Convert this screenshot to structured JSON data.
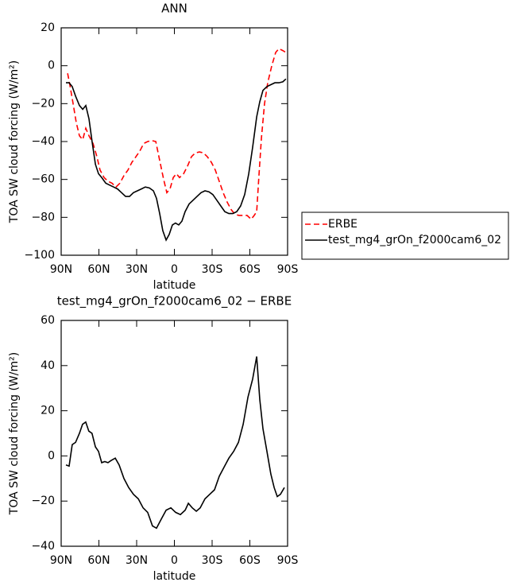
{
  "chart_data": [
    {
      "type": "line",
      "title": "ANN",
      "xlabel": "latitude",
      "ylabel": "TOA SW cloud forcing (W/m²)",
      "xlim": [
        90,
        -90
      ],
      "xticks": [
        {
          "value": 90,
          "label": "90N"
        },
        {
          "value": 60,
          "label": "60N"
        },
        {
          "value": 30,
          "label": "30N"
        },
        0,
        {
          "value": -30,
          "label": "30S"
        },
        {
          "value": -60,
          "label": "60S"
        },
        {
          "value": -90,
          "label": "90S"
        }
      ],
      "ylim": [
        -100,
        20
      ],
      "yticks": [
        {
          "value": -100,
          "label": "−100"
        },
        {
          "value": -80,
          "label": "−80"
        },
        {
          "value": -60,
          "label": "−60"
        },
        {
          "value": -40,
          "label": "−40"
        },
        {
          "value": -20,
          "label": "−20"
        },
        0,
        20
      ],
      "legend": "right",
      "series": [
        {
          "name": "ERBE",
          "color": "#ff0000",
          "dash": true,
          "x": [
            84.9,
            83.1,
            80.5,
            78.0,
            75.5,
            72.9,
            70.4,
            67.9,
            64.7,
            61.6,
            59.1,
            55.9,
            52.7,
            49.6,
            46.4,
            43.3,
            40.1,
            36.9,
            33.8,
            30.6,
            27.5,
            24.3,
            21.2,
            18.0,
            14.8,
            11.7,
            8.5,
            6.0,
            3.5,
            0.9,
            -1.6,
            -4.1,
            -7.3,
            -10.4,
            -13.6,
            -16.7,
            -19.9,
            -23.1,
            -26.2,
            -29.4,
            -32.5,
            -35.7,
            -38.8,
            -42.0,
            -45.2,
            -48.3,
            -51.5,
            -54.6,
            -57.8,
            -61.0,
            -63.5,
            -65.4,
            -67.3,
            -69.2,
            -71.7,
            -74.2,
            -77.4,
            -80.5,
            -83.1,
            -86.2,
            -88.7
          ],
          "values": [
            -4,
            -10,
            -20,
            -30,
            -37,
            -39,
            -33,
            -37,
            -41,
            -48,
            -55,
            -59,
            -61,
            -62,
            -64,
            -62,
            -58,
            -55,
            -51,
            -48,
            -45,
            -41,
            -40,
            -39.5,
            -40,
            -50,
            -60,
            -67,
            -65,
            -59,
            -57,
            -59,
            -57,
            -53,
            -48,
            -46,
            -45.5,
            -46,
            -48,
            -51,
            -55,
            -61,
            -67,
            -72,
            -76,
            -78.5,
            -79,
            -79,
            -79,
            -81,
            -79,
            -77,
            -57,
            -38,
            -20,
            -9,
            0,
            7,
            9,
            8,
            7
          ]
        },
        {
          "name": "test_mg4_grOn_f2000cam6_02",
          "color": "#000000",
          "dash": false,
          "x": [
            86.2,
            83.7,
            81.2,
            78.6,
            75.5,
            72.9,
            70.4,
            67.9,
            65.4,
            62.8,
            60.3,
            57.8,
            54.6,
            51.5,
            48.3,
            45.2,
            42.0,
            38.8,
            35.7,
            32.5,
            29.4,
            26.2,
            23.1,
            19.9,
            16.7,
            14.2,
            11.7,
            9.2,
            6.6,
            4.1,
            1.6,
            -0.9,
            -3.5,
            -6.0,
            -8.5,
            -11.7,
            -14.8,
            -18.0,
            -21.2,
            -24.3,
            -27.5,
            -30.6,
            -33.8,
            -36.9,
            -40.1,
            -43.3,
            -46.4,
            -49.6,
            -52.7,
            -55.9,
            -59.1,
            -62.2,
            -65.4,
            -67.9,
            -70.4,
            -73.6,
            -76.7,
            -79.9,
            -83.1,
            -86.2,
            -88.7
          ],
          "values": [
            -9,
            -9,
            -11,
            -16,
            -21,
            -23,
            -21,
            -28,
            -40,
            -52,
            -57,
            -59,
            -62,
            -63,
            -64,
            -65,
            -67,
            -69,
            -69,
            -67,
            -66,
            -65,
            -64,
            -64.5,
            -66,
            -70,
            -78,
            -87,
            -92,
            -89,
            -84,
            -83,
            -84,
            -82,
            -77,
            -73,
            -71,
            -69,
            -67,
            -66,
            -66.5,
            -68,
            -71,
            -74,
            -77,
            -78,
            -78,
            -77,
            -74,
            -68,
            -57,
            -43,
            -27,
            -19,
            -13,
            -11,
            -10,
            -9,
            -9,
            -8.5,
            -7
          ]
        }
      ]
    },
    {
      "type": "line",
      "title": "test_mg4_grOn_f2000cam6_02 − ERBE",
      "xlabel": "latitude",
      "ylabel": "TOA SW cloud forcing (W/m²)",
      "xlim": [
        90,
        -90
      ],
      "xticks": [
        {
          "value": 90,
          "label": "90N"
        },
        {
          "value": 60,
          "label": "60N"
        },
        {
          "value": 30,
          "label": "30N"
        },
        0,
        {
          "value": -30,
          "label": "30S"
        },
        {
          "value": -60,
          "label": "60S"
        },
        {
          "value": -90,
          "label": "90S"
        }
      ],
      "ylim": [
        -40,
        60
      ],
      "yticks": [
        {
          "value": -40,
          "label": "−40"
        },
        {
          "value": -20,
          "label": "−20"
        },
        0,
        20,
        40,
        60
      ],
      "color": "#000000",
      "x": [
        86.2,
        83.7,
        81.2,
        78.6,
        75.5,
        73.0,
        70.5,
        68.0,
        65.5,
        62.8,
        60.3,
        57.8,
        55.3,
        52.8,
        50.2,
        47.0,
        43.9,
        40.1,
        36.3,
        32.5,
        28.7,
        24.9,
        21.2,
        17.4,
        14.2,
        10.4,
        6.6,
        2.8,
        -1.0,
        -4.8,
        -8.6,
        -11.1,
        -14.2,
        -17.4,
        -20.5,
        -24.3,
        -28.1,
        -31.9,
        -35.7,
        -39.5,
        -43.3,
        -47.1,
        -50.9,
        -54.7,
        -58.5,
        -62.2,
        -65.4,
        -67.9,
        -70.4,
        -73.6,
        -76.7,
        -79.3,
        -81.8,
        -84.3,
        -87.5
      ],
      "values": [
        -4,
        -4.5,
        5,
        6,
        10,
        14,
        15,
        11,
        10,
        4,
        2,
        -3,
        -2.5,
        -3,
        -2,
        -1,
        -4,
        -10,
        -14,
        -17,
        -19,
        -23,
        -25,
        -31,
        -32,
        -28,
        -24,
        -23,
        -25,
        -26,
        -24,
        -21,
        -23,
        -24.5,
        -23,
        -19,
        -17,
        -15,
        -9,
        -5,
        -1,
        2,
        6,
        14,
        26,
        34,
        44,
        25,
        12,
        2,
        -8,
        -14,
        -18,
        -17,
        -14
      ]
    }
  ]
}
